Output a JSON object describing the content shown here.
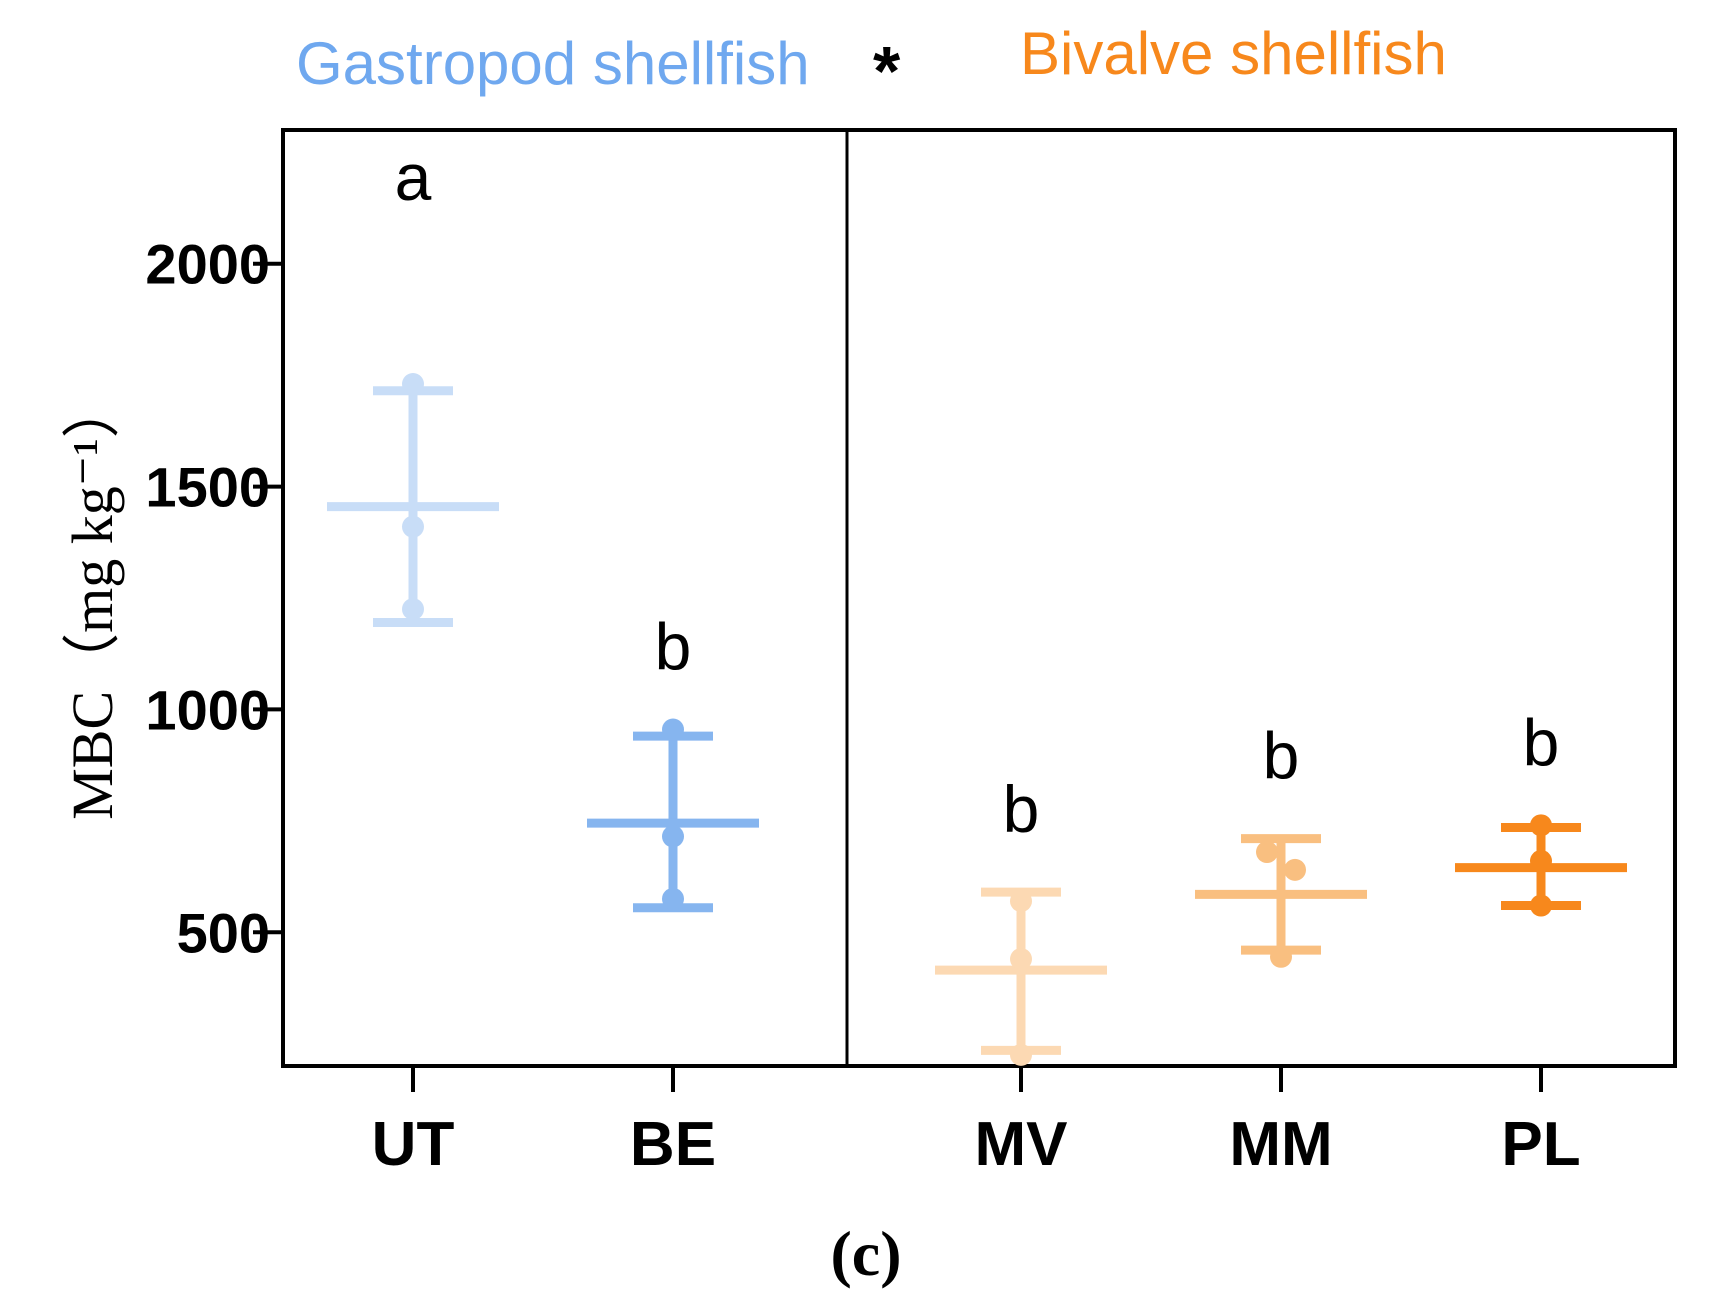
{
  "chart_data": {
    "type": "scatter",
    "ylabel": "MBC（mg kg⁻¹）",
    "ylim": [
      200,
      2300
    ],
    "yticks": [
      500,
      1000,
      1500,
      2000
    ],
    "ytick_labels": [
      "500",
      "1000",
      "1500",
      "2000"
    ],
    "grid": false,
    "panel_label": "(c)",
    "groups": [
      {
        "name": "Gastropod shellfish",
        "marker": "*",
        "color": "#6fa8ef",
        "categories": [
          "UT",
          "BE"
        ]
      },
      {
        "name": "Bivalve shellfish",
        "color": "#f7881c",
        "categories": [
          "MV",
          "MM",
          "PL"
        ]
      }
    ],
    "categories": [
      "UT",
      "BE",
      "MV",
      "MM",
      "PL"
    ],
    "series": [
      {
        "category": "UT",
        "mean": 1455,
        "sd_low": 1195,
        "sd_high": 1715,
        "points": [
          1730,
          1410,
          1225
        ],
        "sig": "a",
        "color": "#c8ddf7"
      },
      {
        "category": "BE",
        "mean": 745,
        "sd_low": 555,
        "sd_high": 940,
        "points": [
          955,
          715,
          575
        ],
        "sig": "b",
        "color": "#86b5ef"
      },
      {
        "category": "MV",
        "mean": 415,
        "sd_low": 235,
        "sd_high": 590,
        "points": [
          570,
          440,
          225
        ],
        "sig": "b",
        "color": "#fcd9b3"
      },
      {
        "category": "MM",
        "mean": 585,
        "sd_low": 460,
        "sd_high": 710,
        "points": [
          680,
          640,
          445
        ],
        "sig": "b",
        "color": "#f9bf80"
      },
      {
        "category": "PL",
        "mean": 645,
        "sd_low": 560,
        "sd_high": 735,
        "points": [
          740,
          660,
          560
        ],
        "sig": "b",
        "color": "#f7881c"
      }
    ]
  }
}
